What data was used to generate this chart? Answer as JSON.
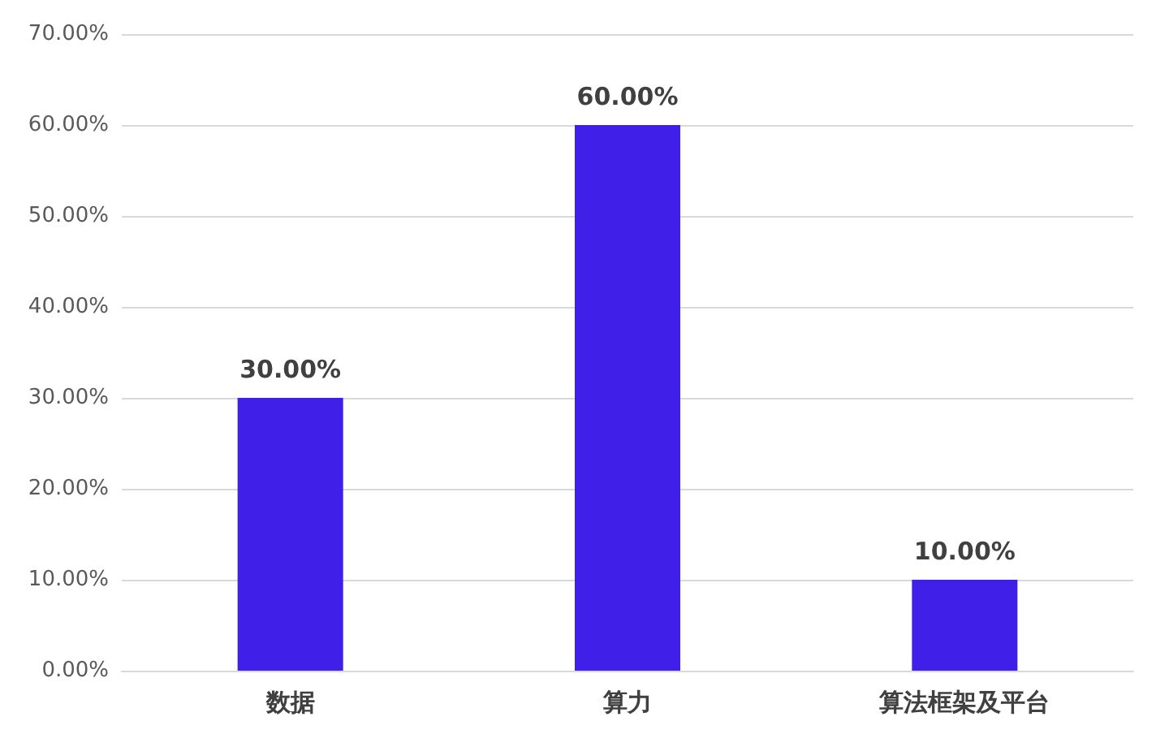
{
  "chart_data": {
    "type": "bar",
    "categories": [
      "数据",
      "算力",
      "算法框架及平台"
    ],
    "values": [
      30,
      60,
      10
    ],
    "color": "#4020e8",
    "value_labels": [
      "30.00%",
      "60.00%",
      "10.00%"
    ],
    "ylim": [
      0,
      70
    ],
    "yticks": [
      {
        "value": 0,
        "label": "0.00%"
      },
      {
        "value": 10,
        "label": "10.00%"
      },
      {
        "value": 20,
        "label": "20.00%"
      },
      {
        "value": 30,
        "label": "30.00%"
      },
      {
        "value": 40,
        "label": "40.00%"
      },
      {
        "value": 50,
        "label": "50.00%"
      },
      {
        "value": 60,
        "label": "60.00%"
      },
      {
        "value": 70,
        "label": "70.00%"
      }
    ],
    "grid": "y"
  }
}
